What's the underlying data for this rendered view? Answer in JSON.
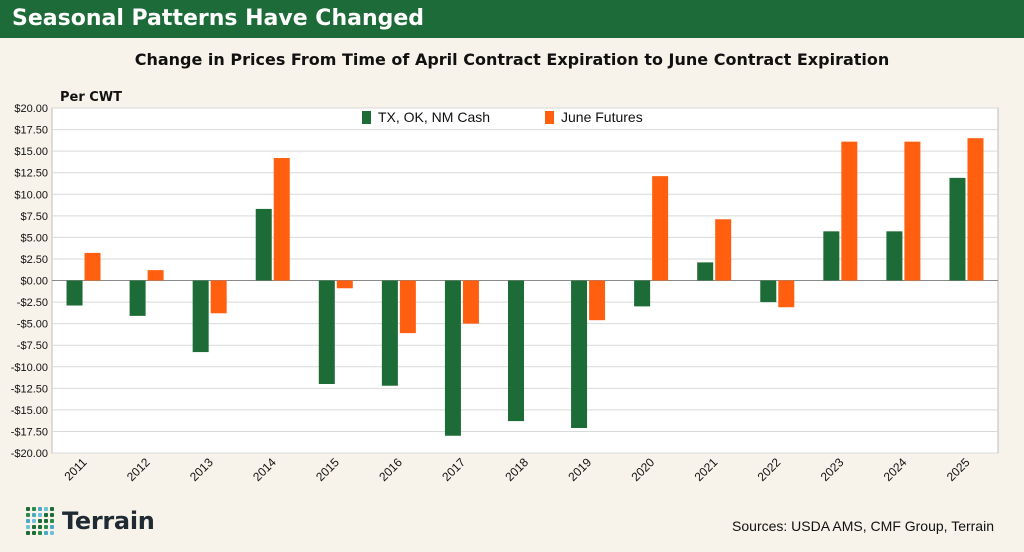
{
  "banner": {
    "title": "Seasonal Patterns Have Changed"
  },
  "chart_data": {
    "type": "bar",
    "title": "Change in Prices From Time of April Contract Expiration to June Contract Expiration",
    "ylabel": "Per CWT",
    "xlabel": "",
    "ylim": [
      -20,
      20
    ],
    "ytick_step": 2.5,
    "grid": true,
    "legend": "top-center",
    "categories": [
      "2011",
      "2012",
      "2013",
      "2014",
      "2015",
      "2016",
      "2017",
      "2018",
      "2019",
      "2020",
      "2021",
      "2022",
      "2023",
      "2024",
      "2025"
    ],
    "series": [
      {
        "name": "TX, OK, NM Cash",
        "color": "#1d6b36",
        "values": [
          -2.9,
          -4.1,
          -8.3,
          8.3,
          -12.0,
          -12.2,
          -18.0,
          -16.3,
          -17.1,
          -3.0,
          2.1,
          -2.5,
          5.7,
          5.7,
          11.9
        ]
      },
      {
        "name": "June Futures",
        "color": "#ff5f0f",
        "values": [
          3.2,
          1.2,
          -3.8,
          14.2,
          -0.9,
          -6.1,
          -5.0,
          0.0,
          -4.6,
          12.1,
          7.1,
          -3.1,
          16.1,
          16.1,
          16.5
        ]
      }
    ]
  },
  "footer": {
    "brand": "Terrain",
    "sources": "Sources: USDA AMS, CMF Group, Terrain"
  }
}
